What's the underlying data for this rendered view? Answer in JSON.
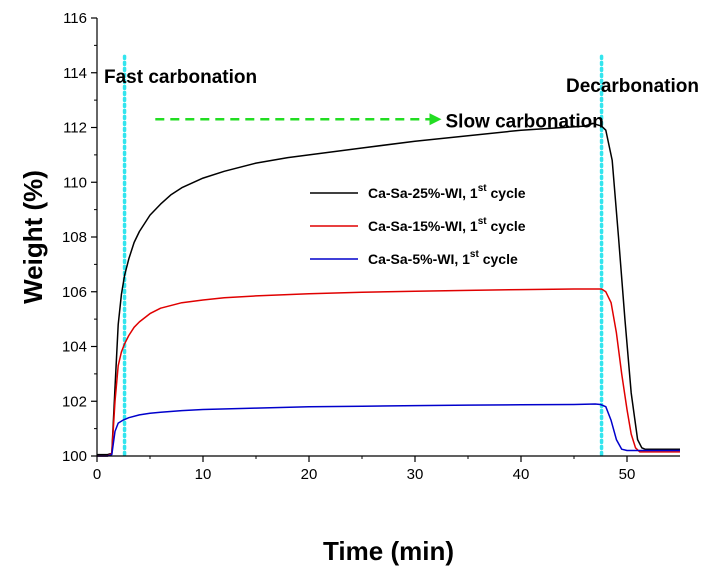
{
  "chart_data": {
    "type": "line",
    "xlabel": "Time (min)",
    "ylabel": "Weight (%)",
    "xlim": [
      0,
      55
    ],
    "ylim": [
      100,
      116
    ],
    "xticks": [
      0,
      10,
      20,
      30,
      40,
      50
    ],
    "yticks": [
      100,
      102,
      104,
      106,
      108,
      110,
      112,
      114,
      116
    ],
    "grid": false,
    "legend_position": "center-right",
    "annotations": {
      "fast": "Fast carbonation",
      "slow": "Slow carbonation",
      "decarb": "Decarbonation"
    },
    "vlines": [
      2.6,
      47.6
    ],
    "vline_color": "#33e5ee",
    "arrow": {
      "x_start": 5.5,
      "x_end": 32.5,
      "y": 112.3,
      "color": "#22dd22"
    },
    "series": [
      {
        "name_main": "Ca-Sa-25%-WI, 1",
        "name_sup": "st",
        "name_tail": " cycle",
        "color": "#000000",
        "x": [
          0,
          1.0,
          1.4,
          1.7,
          2.0,
          2.3,
          2.6,
          3.0,
          3.5,
          4,
          5,
          6,
          7,
          8,
          10,
          12,
          15,
          18,
          20,
          25,
          30,
          35,
          40,
          44,
          46,
          46.8,
          47.2,
          47.6,
          48.0,
          48.6,
          49.2,
          49.8,
          50.4,
          51.0,
          51.4,
          51.7,
          52,
          55
        ],
        "y": [
          100.05,
          100.05,
          100.1,
          102.5,
          104.8,
          105.9,
          106.6,
          107.2,
          107.8,
          108.2,
          108.8,
          109.2,
          109.55,
          109.8,
          110.15,
          110.4,
          110.7,
          110.9,
          111.0,
          111.25,
          111.5,
          111.7,
          111.9,
          112.0,
          112.05,
          112.15,
          112.1,
          112.05,
          111.9,
          110.8,
          108.0,
          105.0,
          102.3,
          100.6,
          100.3,
          100.25,
          100.25,
          100.25
        ]
      },
      {
        "name_main": "Ca-Sa-15%-WI, 1",
        "name_sup": "st",
        "name_tail": " cycle",
        "color": "#e00000",
        "x": [
          0,
          1.0,
          1.4,
          1.7,
          2.0,
          2.3,
          2.6,
          3.0,
          3.5,
          4,
          5,
          6,
          8,
          10,
          12,
          15,
          20,
          25,
          30,
          35,
          40,
          45,
          47,
          47.6,
          48.0,
          48.5,
          49.0,
          49.5,
          50.0,
          50.4,
          50.8,
          51.2,
          55
        ],
        "y": [
          100.0,
          100.0,
          100.1,
          102.0,
          103.3,
          103.8,
          104.1,
          104.4,
          104.7,
          104.9,
          105.2,
          105.4,
          105.6,
          105.7,
          105.78,
          105.85,
          105.93,
          105.98,
          106.02,
          106.05,
          106.08,
          106.1,
          106.1,
          106.1,
          106.0,
          105.6,
          104.5,
          103.0,
          101.7,
          100.8,
          100.3,
          100.15,
          100.15
        ]
      },
      {
        "name_main": "Ca-Sa-5%-WI, 1",
        "name_sup": "st",
        "name_tail": " cycle",
        "color": "#0000cc",
        "x": [
          0,
          1.0,
          1.4,
          1.7,
          2.0,
          2.5,
          3.0,
          4,
          5,
          6,
          8,
          10,
          15,
          20,
          25,
          30,
          35,
          40,
          45,
          47,
          47.5,
          48.0,
          48.5,
          49.0,
          49.5,
          50.0,
          55
        ],
        "y": [
          100.0,
          100.0,
          100.05,
          100.9,
          101.2,
          101.32,
          101.4,
          101.5,
          101.56,
          101.6,
          101.66,
          101.7,
          101.75,
          101.8,
          101.82,
          101.84,
          101.86,
          101.87,
          101.88,
          101.9,
          101.88,
          101.8,
          101.3,
          100.6,
          100.25,
          100.2,
          100.2
        ]
      }
    ]
  }
}
